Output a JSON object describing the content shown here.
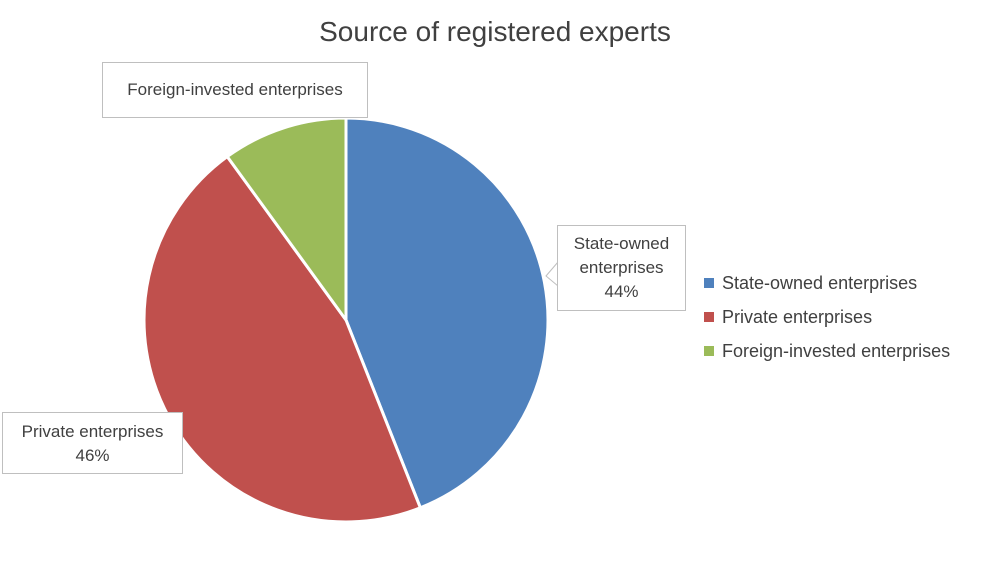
{
  "chart_data": {
    "type": "pie",
    "title": "Source of registered experts",
    "slices": [
      {
        "label": "State-owned enterprises",
        "value": 44,
        "value_label": "44%",
        "color": "#4f81bd"
      },
      {
        "label": "Private enterprises",
        "value": 46,
        "value_label": "46%",
        "color": "#c0504d"
      },
      {
        "label": "Foreign-invested enterprises",
        "value": 10,
        "value_label": "",
        "color": "#9bbb59"
      }
    ],
    "legend_position": "right"
  },
  "callouts": {
    "state_line1": "State-owned",
    "state_line2": "enterprises",
    "state_value": "44%",
    "private_line1": "Private enterprises",
    "private_value": "46%",
    "foreign_line1": "Foreign-invested enterprises"
  }
}
